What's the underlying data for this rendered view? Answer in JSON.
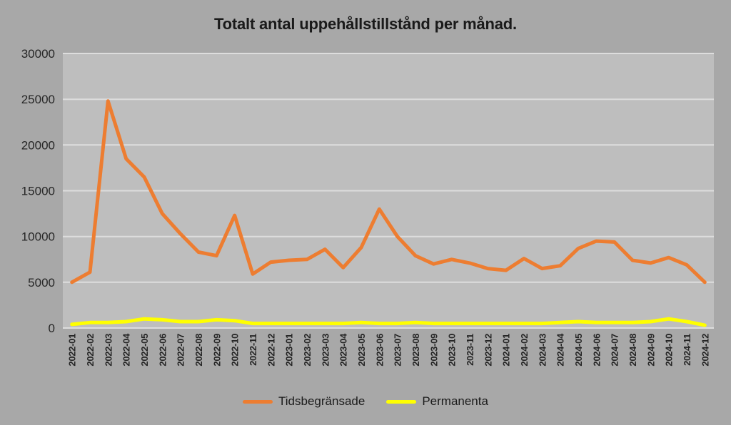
{
  "chart_data": {
    "type": "line",
    "title": "Totalt antal uppehållstillstånd per månad.",
    "xlabel": "",
    "ylabel": "",
    "ylim": [
      0,
      30000
    ],
    "yticks": [
      0,
      5000,
      10000,
      15000,
      20000,
      25000,
      30000
    ],
    "grid": true,
    "legend_position": "bottom",
    "plot_bg": "#BEBEBE",
    "page_bg": "#A8A8A8",
    "grid_color": "#DDDDDD",
    "text_color": "#262626",
    "x": [
      "2022-01",
      "2022-02",
      "2022-03",
      "2022-04",
      "2022-05",
      "2022-06",
      "2022-07",
      "2022-08",
      "2022-09",
      "2022-10",
      "2022-11",
      "2022-12",
      "2023-01",
      "2023-02",
      "2023-03",
      "2023-04",
      "2023-05",
      "2023-06",
      "2023-07",
      "2023-08",
      "2023-09",
      "2023-10",
      "2023-11",
      "2023-12",
      "2024-01",
      "2024-02",
      "2024-03",
      "2024-04",
      "2024-05",
      "2024-06",
      "2024-07",
      "2024-08",
      "2024-09",
      "2024-10",
      "2024-11",
      "2024-12"
    ],
    "series": [
      {
        "name": "Tidsbegränsade",
        "color": "#ED7D31",
        "values": [
          5000,
          6100,
          24800,
          18500,
          16500,
          12500,
          10300,
          8300,
          7900,
          12300,
          5900,
          7200,
          7400,
          7500,
          8600,
          6600,
          8800,
          13000,
          10000,
          7900,
          7000,
          7500,
          7100,
          6500,
          6300,
          7600,
          6500,
          6800,
          8700,
          9500,
          9400,
          7400,
          7100,
          7700,
          6900,
          5000
        ]
      },
      {
        "name": "Permanenta",
        "color": "#FFFF00",
        "values": [
          400,
          600,
          600,
          700,
          1000,
          900,
          700,
          700,
          900,
          800,
          500,
          500,
          500,
          500,
          500,
          500,
          600,
          500,
          500,
          600,
          500,
          500,
          500,
          500,
          500,
          500,
          500,
          600,
          700,
          600,
          600,
          600,
          700,
          1000,
          700,
          300
        ]
      }
    ]
  }
}
